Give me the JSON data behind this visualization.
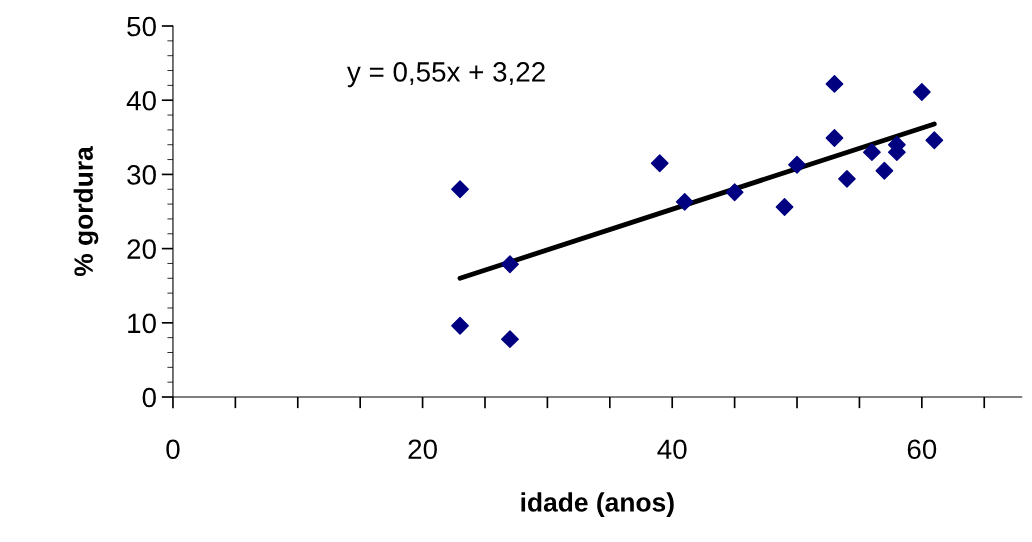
{
  "chart_data": {
    "type": "scatter",
    "xlabel": "idade (anos)",
    "ylabel": "% gordura",
    "marker": "diamond",
    "grid": false,
    "legend": false,
    "xlim": [
      0,
      68
    ],
    "xticks": [
      0,
      {
        "value": 5,
        "label": null
      },
      {
        "value": 10,
        "label": null
      },
      {
        "value": 15,
        "label": null
      },
      20,
      {
        "value": 25,
        "label": null
      },
      {
        "value": 30,
        "label": null
      },
      {
        "value": 35,
        "label": null
      },
      40,
      {
        "value": 45,
        "label": null
      },
      {
        "value": 50,
        "label": null
      },
      {
        "value": 55,
        "label": null
      },
      60,
      {
        "value": 65,
        "label": null
      }
    ],
    "ylim": [
      0,
      50
    ],
    "yticks": [
      0,
      10,
      20,
      30,
      40,
      50
    ],
    "annotations": [
      "y = 0,55x + 3,22"
    ],
    "series": [
      {
        "color": "#000080",
        "x": [
          23,
          23,
          27,
          27,
          39,
          41,
          45,
          49,
          50,
          53,
          53,
          54,
          56,
          57,
          58,
          58,
          60,
          61
        ],
        "values": [
          28.0,
          9.6,
          17.9,
          7.8,
          31.5,
          26.3,
          27.6,
          25.6,
          31.3,
          42.2,
          34.9,
          29.4,
          33.0,
          30.5,
          34.0,
          33.0,
          41.1,
          34.6
        ]
      },
      {
        "type": "line",
        "marker": "none",
        "color": "#000000",
        "x": [
          23,
          61
        ],
        "values": [
          16.0,
          36.8
        ]
      }
    ]
  }
}
